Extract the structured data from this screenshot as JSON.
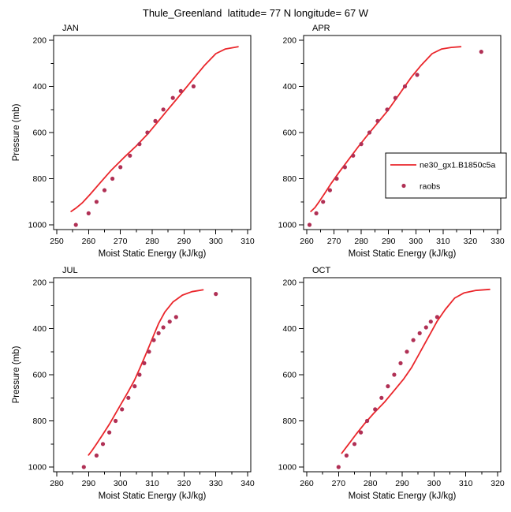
{
  "title": "Thule_Greenland  latitude= 77 N longitude= 67 W",
  "colors": {
    "model_line": "#ea262b",
    "raobs_marker": "#b03055",
    "axis": "#000000",
    "background": "#ffffff"
  },
  "legend": {
    "position": "inside-top-right-panel",
    "entries": [
      {
        "label": "ne30_gx1.B1850c5a",
        "type": "line",
        "color": "#ea262b"
      },
      {
        "label": "raobs",
        "type": "marker",
        "color": "#b03055"
      }
    ]
  },
  "chart_data": [
    {
      "type": "line",
      "title": "JAN",
      "xlabel": "Moist Static Energy (kJ/kg)",
      "ylabel": "Pressure (mb)",
      "xlim": [
        250,
        310
      ],
      "ylim": [
        200,
        1000
      ],
      "y_inverted": true,
      "grid": false,
      "xticks": [
        250,
        260,
        270,
        280,
        290,
        300,
        310
      ],
      "yticks": [
        200,
        400,
        600,
        800,
        1000
      ],
      "series": [
        {
          "name": "ne30_gx1.B1850c5a",
          "kind": "line",
          "points": [
            [
              254.5,
              942
            ],
            [
              256,
              928
            ],
            [
              258,
              905
            ],
            [
              260.5,
              868
            ],
            [
              263.5,
              820
            ],
            [
              267,
              765
            ],
            [
              271,
              710
            ],
            [
              275,
              658
            ],
            [
              278.5,
              608
            ],
            [
              281.5,
              558
            ],
            [
              284.5,
              508
            ],
            [
              287.5,
              458
            ],
            [
              290.5,
              408
            ],
            [
              293.5,
              358
            ],
            [
              296.5,
              308
            ],
            [
              300,
              258
            ],
            [
              303,
              238
            ],
            [
              307,
              228
            ]
          ]
        },
        {
          "name": "raobs",
          "kind": "scatter",
          "points": [
            [
              256,
              1000
            ],
            [
              260,
              950
            ],
            [
              262.5,
              900
            ],
            [
              265,
              850
            ],
            [
              267.5,
              800
            ],
            [
              270,
              750
            ],
            [
              273,
              700
            ],
            [
              276,
              650
            ],
            [
              278.5,
              600
            ],
            [
              281,
              550
            ],
            [
              283.5,
              500
            ],
            [
              286.5,
              450
            ],
            [
              289,
              420
            ],
            [
              293,
              400
            ]
          ]
        }
      ]
    },
    {
      "type": "line",
      "title": "APR",
      "xlabel": "Moist Static Energy (kJ/kg)",
      "ylabel": "",
      "xlim": [
        260,
        330
      ],
      "ylim": [
        200,
        1000
      ],
      "y_inverted": true,
      "grid": false,
      "xticks": [
        260,
        270,
        280,
        290,
        300,
        310,
        320,
        330
      ],
      "yticks": [
        200,
        400,
        600,
        800,
        1000
      ],
      "series": [
        {
          "name": "ne30_gx1.B1850c5a",
          "kind": "line",
          "points": [
            [
              261.5,
              942
            ],
            [
              263,
              925
            ],
            [
              264.5,
              900
            ],
            [
              266.5,
              865
            ],
            [
              269,
              820
            ],
            [
              272,
              770
            ],
            [
              275.5,
              715
            ],
            [
              279,
              660
            ],
            [
              282.5,
              608
            ],
            [
              286,
              558
            ],
            [
              289.5,
              508
            ],
            [
              292.5,
              458
            ],
            [
              295.5,
              408
            ],
            [
              298.5,
              358
            ],
            [
              302,
              308
            ],
            [
              306,
              258
            ],
            [
              309.5,
              238
            ],
            [
              313,
              231
            ],
            [
              316.5,
              228
            ]
          ]
        },
        {
          "name": "raobs",
          "kind": "scatter",
          "points": [
            [
              261,
              1000
            ],
            [
              263.5,
              950
            ],
            [
              266,
              900
            ],
            [
              268.5,
              850
            ],
            [
              271,
              800
            ],
            [
              274,
              750
            ],
            [
              277,
              700
            ],
            [
              280,
              650
            ],
            [
              283,
              600
            ],
            [
              286,
              550
            ],
            [
              289.5,
              500
            ],
            [
              292.5,
              450
            ],
            [
              296,
              400
            ],
            [
              300.5,
              350
            ],
            [
              324,
              250
            ]
          ]
        }
      ]
    },
    {
      "type": "line",
      "title": "JUL",
      "xlabel": "Moist Static Energy (kJ/kg)",
      "ylabel": "Pressure (mb)",
      "xlim": [
        280,
        340
      ],
      "ylim": [
        200,
        1000
      ],
      "y_inverted": true,
      "grid": false,
      "xticks": [
        280,
        290,
        300,
        310,
        320,
        330,
        340
      ],
      "yticks": [
        200,
        400,
        600,
        800,
        1000
      ],
      "series": [
        {
          "name": "ne30_gx1.B1850c5a",
          "kind": "line",
          "points": [
            [
              290,
              948
            ],
            [
              291,
              930
            ],
            [
              292.5,
              900
            ],
            [
              294.5,
              858
            ],
            [
              296.5,
              815
            ],
            [
              298.5,
              768
            ],
            [
              300.5,
              720
            ],
            [
              302.5,
              672
            ],
            [
              304.5,
              622
            ],
            [
              306,
              575
            ],
            [
              307.5,
              528
            ],
            [
              309,
              478
            ],
            [
              310.5,
              428
            ],
            [
              312,
              378
            ],
            [
              314,
              328
            ],
            [
              316.5,
              285
            ],
            [
              319.5,
              255
            ],
            [
              322.5,
              240
            ],
            [
              326,
              232
            ]
          ]
        },
        {
          "name": "raobs",
          "kind": "scatter",
          "points": [
            [
              288.5,
              1000
            ],
            [
              292.5,
              950
            ],
            [
              294.5,
              900
            ],
            [
              296.5,
              850
            ],
            [
              298.5,
              800
            ],
            [
              300.5,
              750
            ],
            [
              302.5,
              700
            ],
            [
              304.5,
              650
            ],
            [
              306,
              600
            ],
            [
              307.5,
              550
            ],
            [
              309,
              500
            ],
            [
              310.5,
              450
            ],
            [
              312,
              420
            ],
            [
              313.5,
              395
            ],
            [
              315.5,
              370
            ],
            [
              317.5,
              350
            ],
            [
              330,
              250
            ]
          ]
        }
      ]
    },
    {
      "type": "line",
      "title": "OCT",
      "xlabel": "Moist Static Energy (kJ/kg)",
      "ylabel": "",
      "xlim": [
        260,
        320
      ],
      "ylim": [
        200,
        1000
      ],
      "y_inverted": true,
      "grid": false,
      "xticks": [
        260,
        270,
        280,
        290,
        300,
        310,
        320
      ],
      "yticks": [
        200,
        400,
        600,
        800,
        1000
      ],
      "series": [
        {
          "name": "ne30_gx1.B1850c5a",
          "kind": "line",
          "points": [
            [
              271,
              940
            ],
            [
              272,
              922
            ],
            [
              273.5,
              895
            ],
            [
              275.5,
              858
            ],
            [
              278,
              815
            ],
            [
              281,
              768
            ],
            [
              284.5,
              718
            ],
            [
              287.5,
              668
            ],
            [
              290.5,
              618
            ],
            [
              293,
              568
            ],
            [
              295,
              518
            ],
            [
              297,
              468
            ],
            [
              299,
              418
            ],
            [
              301,
              368
            ],
            [
              303.5,
              318
            ],
            [
              306.5,
              268
            ],
            [
              309.5,
              245
            ],
            [
              313,
              235
            ],
            [
              317.5,
              230
            ]
          ]
        },
        {
          "name": "raobs",
          "kind": "scatter",
          "points": [
            [
              270,
              1000
            ],
            [
              272.5,
              950
            ],
            [
              275,
              900
            ],
            [
              277,
              850
            ],
            [
              279,
              800
            ],
            [
              281.5,
              750
            ],
            [
              283.5,
              700
            ],
            [
              285.5,
              650
            ],
            [
              287.5,
              600
            ],
            [
              289.5,
              550
            ],
            [
              291.5,
              500
            ],
            [
              293.5,
              450
            ],
            [
              295.5,
              420
            ],
            [
              297.5,
              395
            ],
            [
              299,
              370
            ],
            [
              301,
              350
            ]
          ]
        }
      ]
    }
  ]
}
